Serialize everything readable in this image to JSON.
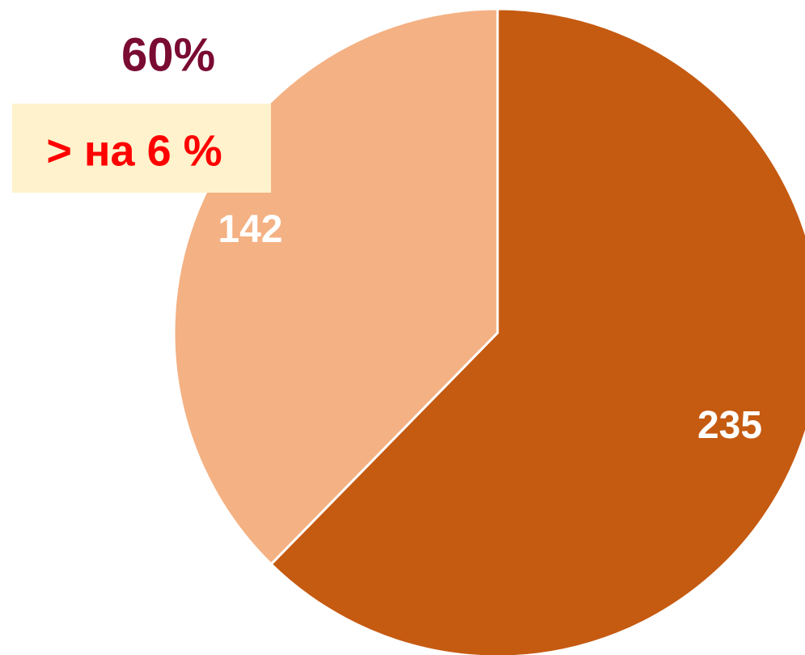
{
  "chart_data": {
    "type": "pie",
    "values": [
      235,
      142
    ],
    "colors": [
      "#c55a11",
      "#f4b183"
    ],
    "annotations": [
      "60%",
      "> на 6 %"
    ],
    "annotation_colors": [
      "#7a0b32",
      "#ff0000"
    ],
    "annotation_box_color": "#fff2cc"
  }
}
